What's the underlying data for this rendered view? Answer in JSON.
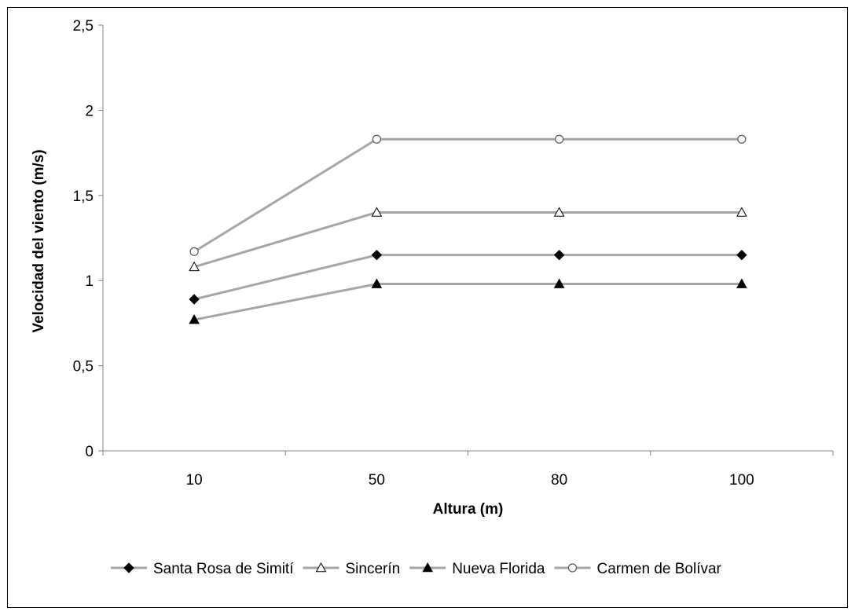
{
  "chart_data": {
    "type": "line",
    "title": "",
    "xlabel": "Altura (m)",
    "ylabel": "Velocidad del viento (m/s)",
    "categories": [
      "10",
      "50",
      "80",
      "100"
    ],
    "ylim": [
      0,
      2.5
    ],
    "yticks": [
      "0",
      "0,5",
      "1",
      "1,5",
      "2",
      "2,5"
    ],
    "ytick_values": [
      0,
      0.5,
      1,
      1.5,
      2,
      2.5
    ],
    "grid": false,
    "legend_position": "bottom",
    "line_color": "#a6a6a6",
    "series": [
      {
        "name": "Santa Rosa de Simití",
        "marker": "diamond-filled",
        "values": [
          0.89,
          1.15,
          1.15,
          1.15
        ]
      },
      {
        "name": "Sincerín",
        "marker": "triangle-open",
        "values": [
          1.08,
          1.4,
          1.4,
          1.4
        ]
      },
      {
        "name": "Nueva Florida",
        "marker": "triangle-filled",
        "values": [
          0.77,
          0.98,
          0.98,
          0.98
        ]
      },
      {
        "name": "Carmen de Bolívar",
        "marker": "circle-open",
        "values": [
          1.17,
          1.83,
          1.83,
          1.83
        ]
      }
    ]
  }
}
